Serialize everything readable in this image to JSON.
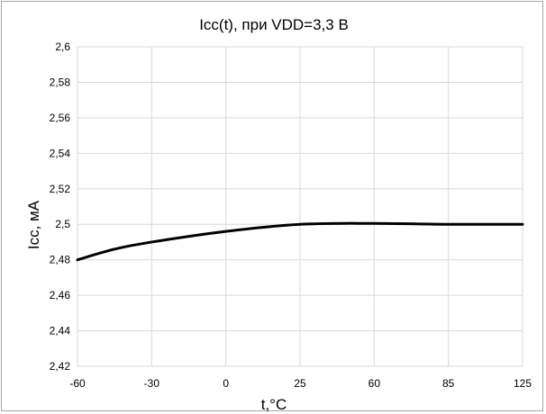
{
  "chart_data": {
    "type": "line",
    "title": "Icc(t), при VDD=3,3 В",
    "xlabel": "t,°C",
    "ylabel": "Icc, мА",
    "x_ticks": [
      "-60",
      "-30",
      "0",
      "25",
      "60",
      "85",
      "125"
    ],
    "y_ticks": [
      "2,42",
      "2,44",
      "2,46",
      "2,48",
      "2,5",
      "2,52",
      "2,54",
      "2,56",
      "2,58",
      "2,6"
    ],
    "ylim": [
      2.42,
      2.6
    ],
    "grid": true,
    "legend": "none",
    "series": [
      {
        "x": [
          -60,
          -45,
          -30,
          0,
          25,
          60,
          85,
          125
        ],
        "values": [
          2.48,
          2.486,
          2.49,
          2.496,
          2.5,
          2.5005,
          2.5,
          2.5
        ],
        "color": "#000000"
      }
    ]
  }
}
